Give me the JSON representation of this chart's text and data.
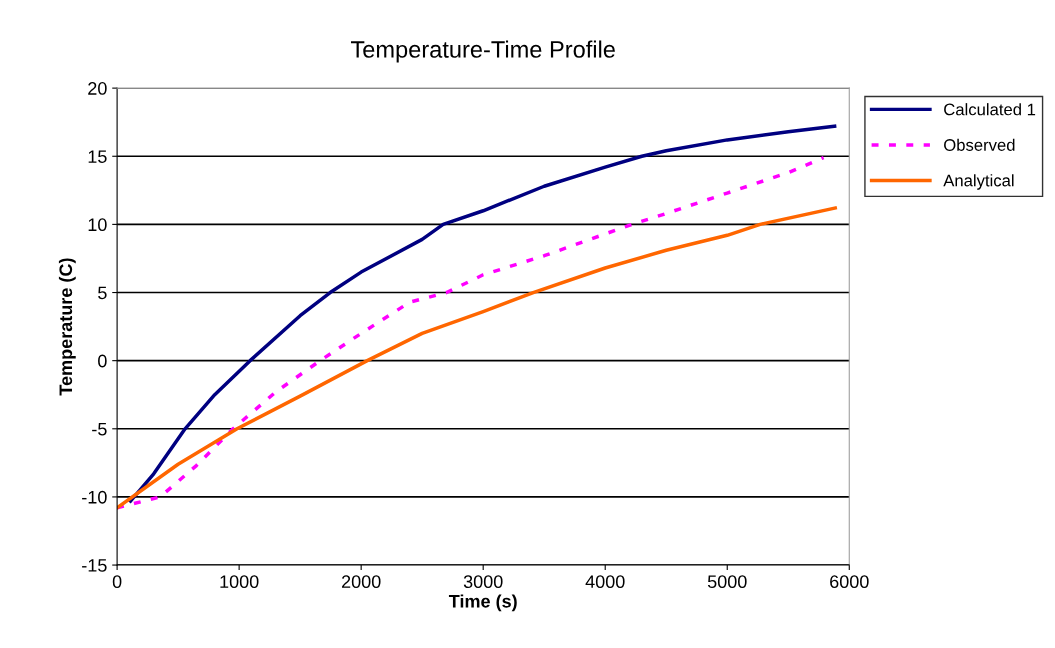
{
  "chart_data": {
    "type": "line",
    "title": "Temperature-Time Profile",
    "xlabel": "Time (s)",
    "ylabel": "Temperature (C)",
    "xlim": [
      0,
      6000
    ],
    "xticks": [
      0,
      1000,
      2000,
      3000,
      4000,
      5000,
      6000
    ],
    "ylim": [
      -15,
      20
    ],
    "yticks": [
      -15,
      -10,
      -5,
      0,
      5,
      10,
      15,
      20
    ],
    "grid": "y",
    "legend": "top right",
    "series": [
      {
        "name": "Calculated 1",
        "color": "#000080",
        "line_style": "solid",
        "x": [
          110,
          300,
          557,
          800,
          1090,
          1500,
          1746,
          2000,
          2500,
          2672,
          3000,
          3500,
          4000,
          4300,
          4500,
          5000,
          5500,
          5880
        ],
        "values": [
          -10.3,
          -8.3,
          -5,
          -2.5,
          0,
          3.3,
          5,
          6.5,
          8.9,
          10,
          11.0,
          12.8,
          14.2,
          15,
          15.4,
          16.2,
          16.8,
          17.2
        ]
      },
      {
        "name": "Observed",
        "color": "#ff00ff",
        "line_style": "dashed",
        "x": [
          0,
          352,
          650,
          950,
          1300,
          1664,
          2000,
          2400,
          2700,
          3000,
          3500,
          4000,
          4220,
          4500,
          5000,
          5500,
          5790
        ],
        "values": [
          -10.8,
          -10.0,
          -7.7,
          -5,
          -2.3,
          0,
          2.0,
          4.3,
          5,
          6.3,
          7.7,
          9.3,
          10,
          10.8,
          12.3,
          13.8,
          14.9
        ]
      },
      {
        "name": "Analytical",
        "color": "#ff6600",
        "line_style": "solid",
        "x": [
          0,
          500,
          983,
          1500,
          2050,
          2500,
          3000,
          3410,
          4000,
          4500,
          5000,
          5270,
          5885
        ],
        "values": [
          -10.8,
          -7.6,
          -5,
          -2.6,
          0,
          2.0,
          3.6,
          5,
          6.8,
          8.1,
          9.2,
          10,
          11.2
        ]
      }
    ]
  }
}
